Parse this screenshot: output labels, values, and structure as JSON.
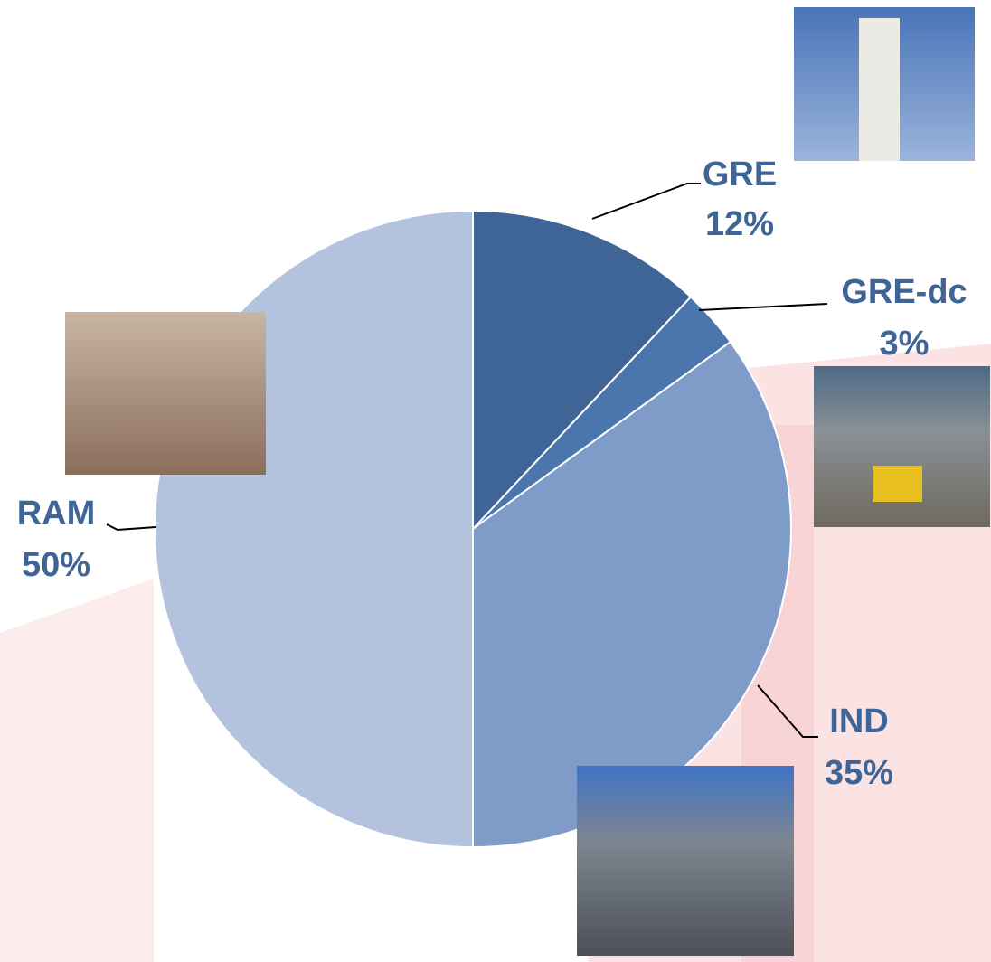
{
  "chart_data": {
    "type": "pie",
    "categories": [
      "GRE",
      "GRE-dc",
      "IND",
      "RAM"
    ],
    "values": [
      12,
      3,
      35,
      50
    ],
    "value_labels": [
      "12%",
      "3%",
      "35%",
      "50%"
    ],
    "colors": [
      "#3e6596",
      "#4a76ad",
      "#7f9cc8",
      "#b3c2dd"
    ]
  }
}
